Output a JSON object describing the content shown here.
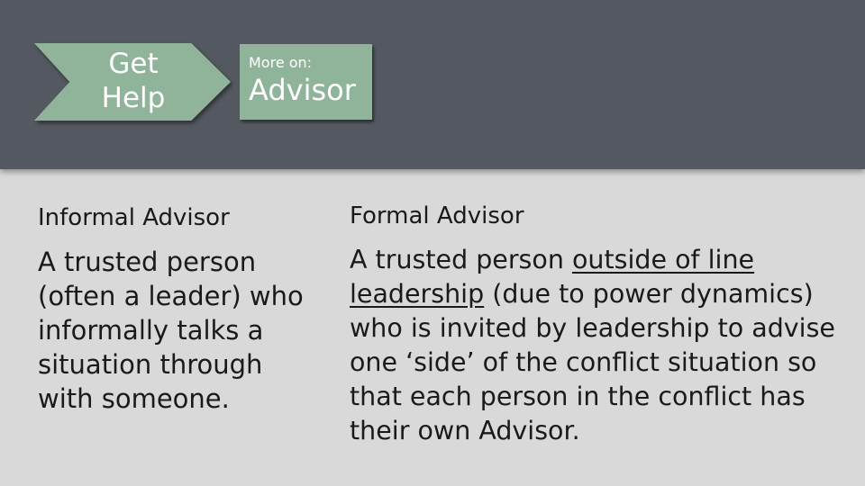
{
  "header": {
    "get_help_label": "Get\nHelp",
    "more_on_label": "More on:",
    "more_on_topic": "Advisor"
  },
  "informal": {
    "heading": "Informal Advisor",
    "body": "A trusted person (often a leader) who informally talks a situation through with someone."
  },
  "formal": {
    "heading": "Formal Advisor",
    "body_part1": "A trusted person ",
    "body_underlined": "outside of line leadership",
    "body_part2": " (due to power dynamics) who is invited by leadership to advise one ‘side’ of the conflict situation so that each person in the conflict has their own Advisor."
  },
  "colors": {
    "header_bg": "#545860",
    "page_bg": "#d9d9d9",
    "accent": "#8fb49a"
  }
}
